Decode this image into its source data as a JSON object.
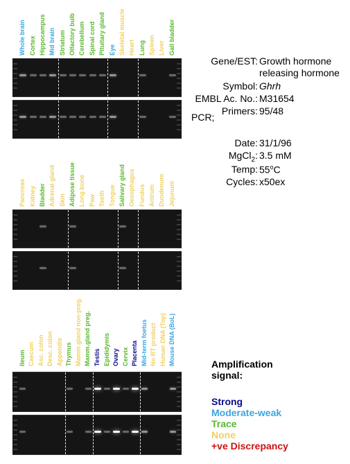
{
  "colors": {
    "strong": "#0b0b8a",
    "moderate_weak": "#3aa6e0",
    "trace": "#58b82a",
    "none": "#f0d060",
    "discrepancy": "#cc1111"
  },
  "panels": [
    {
      "lanes": [
        {
          "label": "Whole brain",
          "signal": "moderate_weak"
        },
        {
          "label": "Cortex",
          "signal": "trace"
        },
        {
          "label": "Hippocampus",
          "signal": "trace"
        },
        {
          "label": "Mid brain",
          "signal": "moderate_weak"
        },
        {
          "label": "Striatum",
          "signal": "trace"
        },
        {
          "label": "Olfactory bulb",
          "signal": "trace"
        },
        {
          "label": "Cerebellum",
          "signal": "trace"
        },
        {
          "label": "Spinal cord",
          "signal": "trace"
        },
        {
          "label": "Pituitary gland",
          "signal": "trace"
        },
        {
          "label": "Eye",
          "signal": "moderate_weak"
        },
        {
          "label": "Skeletal muscle",
          "signal": "none"
        },
        {
          "label": "Heart",
          "signal": "none"
        },
        {
          "label": "Lung",
          "signal": "trace"
        },
        {
          "label": "Spleen",
          "signal": "none"
        },
        {
          "label": "Liver",
          "signal": "none"
        },
        {
          "label": "Gall bladder",
          "signal": "trace"
        }
      ]
    },
    {
      "lanes": [
        {
          "label": "Pancreas",
          "signal": "none"
        },
        {
          "label": "Kidney",
          "signal": "none"
        },
        {
          "label": "Bladder",
          "signal": "trace"
        },
        {
          "label": "Adrenal gland",
          "signal": "none"
        },
        {
          "label": "Skin",
          "signal": "none"
        },
        {
          "label": "Adipose tissue",
          "signal": "trace"
        },
        {
          "label": "Long bone",
          "signal": "none"
        },
        {
          "label": "Paw",
          "signal": "none"
        },
        {
          "label": "Teeth",
          "signal": "none"
        },
        {
          "label": "Tongue",
          "signal": "none"
        },
        {
          "label": "Salivary gland",
          "signal": "trace"
        },
        {
          "label": "Oesophagus",
          "signal": "none"
        },
        {
          "label": "Fundus",
          "signal": "none"
        },
        {
          "label": "Antrum",
          "signal": "none"
        },
        {
          "label": "Duodenum",
          "signal": "none"
        },
        {
          "label": "Jejunum",
          "signal": "none"
        }
      ]
    },
    {
      "lanes": [
        {
          "label": "Ileum",
          "signal": "trace"
        },
        {
          "label": "Caecum",
          "signal": "none"
        },
        {
          "label": "Asc. colon",
          "signal": "none"
        },
        {
          "label": "Desc. colon",
          "signal": "none"
        },
        {
          "label": "Appendix",
          "signal": "none"
        },
        {
          "label": "Thymus",
          "signal": "trace"
        },
        {
          "label": "Mamm.gland non-preg.",
          "signal": "none"
        },
        {
          "label": "Mamm.gland preg.",
          "signal": "trace"
        },
        {
          "label": "Testis",
          "signal": "strong"
        },
        {
          "label": "Epididymis",
          "signal": "trace"
        },
        {
          "label": "Ovary",
          "signal": "strong"
        },
        {
          "label": "Cervix",
          "signal": "trace"
        },
        {
          "label": "Placenta",
          "signal": "strong"
        },
        {
          "label": "Mid-term foetus",
          "signal": "moderate_weak"
        },
        {
          "label": "No RT product",
          "signal": "none"
        },
        {
          "label": "Human DNA (Top)",
          "signal": "none"
        },
        {
          "label": "Mouse DNA (BoL)",
          "signal": "moderate_weak"
        }
      ]
    }
  ],
  "gene_info": {
    "gene_key": "Gene/EST:",
    "gene_value_line1": "Growth hormone",
    "gene_value_line2": "releasing hormone",
    "symbol_key": "Symbol:",
    "symbol_value": "Ghrh",
    "embl_key": "EMBL Ac. No.:",
    "embl_value": "M31654",
    "primers_key": "Primers:",
    "primers_value": "95/48",
    "pcr_heading": "PCR;",
    "date_key": "Date:",
    "date_value": "31/1/96",
    "mgcl2_key_main": "MgCl",
    "mgcl2_key_sub": "2",
    "mgcl2_key_colon": ":",
    "mgcl2_value": "3.5 mM",
    "temp_key": "Temp:",
    "temp_value_main": "55",
    "temp_value_sup": "o",
    "temp_value_unit": "C",
    "cycles_key": "Cycles:",
    "cycles_value": "x50ex"
  },
  "legend": {
    "title_line1": "Amplification",
    "title_line2": "signal:",
    "strong": "Strong",
    "moderate_weak": "Moderate-weak",
    "trace": "Trace",
    "none": "None",
    "discrepancy": "+ve Discrepancy"
  }
}
